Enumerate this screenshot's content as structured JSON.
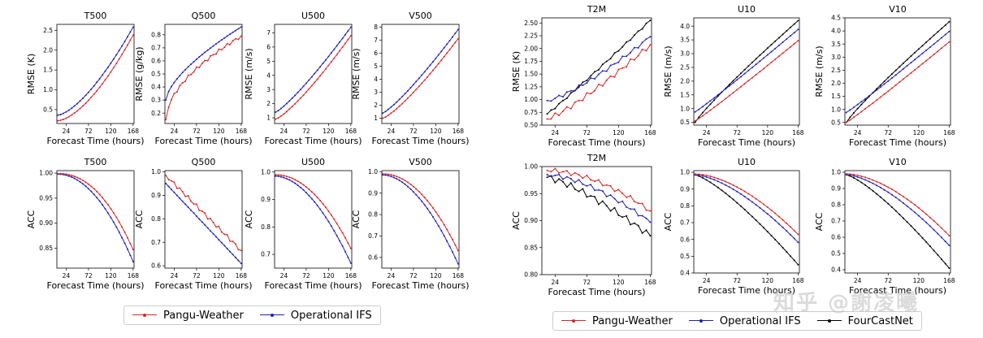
{
  "colors": {
    "pangu": "#d62728",
    "ifs": "#1f1fb4",
    "fcn": "#000000"
  },
  "legend_left": [
    {
      "series": "Pangu-Weather",
      "color": "#d62728"
    },
    {
      "series": "Operational IFS",
      "color": "#1f1fb4"
    }
  ],
  "legend_right": [
    {
      "series": "Pangu-Weather",
      "color": "#d62728"
    },
    {
      "series": "Operational IFS",
      "color": "#1f1fb4"
    },
    {
      "series": "FourCastNet",
      "color": "#000000"
    }
  ],
  "watermark": "知乎 @謝凌曦",
  "chart_data": [
    {
      "type": "line",
      "title": "T500",
      "xlabel": "Forecast Time (hours)",
      "ylabel": "RMSE (K)",
      "x": [
        6,
        168
      ],
      "xticks": [
        24,
        72,
        120,
        168
      ],
      "ylim": [
        0.15,
        2.65
      ],
      "yticks": [
        0.5,
        1.0,
        1.5,
        2.0,
        2.5
      ],
      "series": [
        {
          "name": "Pangu-Weather",
          "start": 0.22,
          "end": 2.38,
          "curve": 1.6
        },
        {
          "name": "Operational IFS",
          "start": 0.36,
          "end": 2.58,
          "curve": 1.5
        }
      ]
    },
    {
      "type": "line",
      "title": "Q500",
      "xlabel": "Forecast Time (hours)",
      "ylabel": "RMSE (g/kg)",
      "x": [
        6,
        168
      ],
      "xticks": [
        24,
        72,
        120,
        168
      ],
      "ylim": [
        0.12,
        0.88
      ],
      "yticks": [
        0.2,
        0.3,
        0.4,
        0.5,
        0.6,
        0.7,
        0.8
      ],
      "series": [
        {
          "name": "Pangu-Weather",
          "start": 0.15,
          "end": 0.79,
          "curve": 0.55,
          "noise": 0.012
        },
        {
          "name": "Operational IFS",
          "start": 0.3,
          "end": 0.86,
          "curve": 0.65
        }
      ]
    },
    {
      "type": "line",
      "title": "U500",
      "xlabel": "Forecast Time (hours)",
      "ylabel": "RMSE (m/s)",
      "x": [
        6,
        168
      ],
      "xticks": [
        24,
        72,
        120,
        168
      ],
      "ylim": [
        0.6,
        7.6
      ],
      "yticks": [
        1,
        2,
        3,
        4,
        5,
        6,
        7
      ],
      "series": [
        {
          "name": "Pangu-Weather",
          "start": 0.9,
          "end": 6.8,
          "curve": 1.25
        },
        {
          "name": "Operational IFS",
          "start": 1.4,
          "end": 7.4,
          "curve": 1.2
        }
      ]
    },
    {
      "type": "line",
      "title": "V500",
      "xlabel": "Forecast Time (hours)",
      "ylabel": "RMSE (m/s)",
      "x": [
        6,
        168
      ],
      "xticks": [
        24,
        72,
        120,
        168
      ],
      "ylim": [
        0.6,
        8.2
      ],
      "yticks": [
        1,
        2,
        3,
        4,
        5,
        6,
        7,
        8
      ],
      "series": [
        {
          "name": "Pangu-Weather",
          "start": 1.0,
          "end": 7.1,
          "curve": 1.25
        },
        {
          "name": "Operational IFS",
          "start": 1.4,
          "end": 7.8,
          "curve": 1.2
        }
      ]
    },
    {
      "type": "line",
      "title": "T2M",
      "xlabel": "Forecast Time (hours)",
      "ylabel": "RMSE (K)",
      "x": [
        12,
        168
      ],
      "xticks": [
        24,
        72,
        120,
        168
      ],
      "ylim": [
        0.5,
        2.6
      ],
      "yticks": [
        0.5,
        0.75,
        1.0,
        1.25,
        1.5,
        1.75,
        2.0,
        2.25,
        2.5
      ],
      "series": [
        {
          "name": "Pangu-Weather",
          "start": 0.62,
          "end": 2.07,
          "curve": 1.2,
          "noise": 0.05
        },
        {
          "name": "Operational IFS",
          "start": 0.98,
          "end": 2.23,
          "curve": 1.3,
          "noise": 0.035
        },
        {
          "name": "FourCastNet",
          "start": 0.72,
          "end": 2.55,
          "curve": 1.05,
          "noise": 0.02
        }
      ]
    },
    {
      "type": "line",
      "title": "U10",
      "xlabel": "Forecast Time (hours)",
      "ylabel": "RMSE (m/s)",
      "x": [
        6,
        168
      ],
      "xticks": [
        24,
        72,
        120,
        168
      ],
      "ylim": [
        0.4,
        4.3
      ],
      "yticks": [
        0.5,
        1.0,
        1.5,
        2.0,
        2.5,
        3.0,
        3.5,
        4.0
      ],
      "series": [
        {
          "name": "Pangu-Weather",
          "start": 0.55,
          "end": 3.47,
          "curve": 1.05
        },
        {
          "name": "Operational IFS",
          "start": 0.88,
          "end": 3.88,
          "curve": 1.05
        },
        {
          "name": "FourCastNet",
          "start": 0.5,
          "end": 4.2,
          "curve": 0.9
        }
      ]
    },
    {
      "type": "line",
      "title": "V10",
      "xlabel": "Forecast Time (hours)",
      "ylabel": "RMSE (m/s)",
      "x": [
        6,
        168
      ],
      "xticks": [
        24,
        72,
        120,
        168
      ],
      "ylim": [
        0.4,
        4.5
      ],
      "yticks": [
        0.5,
        1.0,
        1.5,
        2.0,
        2.5,
        3.0,
        3.5,
        4.0,
        4.5
      ],
      "series": [
        {
          "name": "Pangu-Weather",
          "start": 0.5,
          "end": 3.58,
          "curve": 1.05
        },
        {
          "name": "Operational IFS",
          "start": 0.88,
          "end": 3.98,
          "curve": 1.05
        },
        {
          "name": "FourCastNet",
          "start": 0.5,
          "end": 4.35,
          "curve": 0.9
        }
      ]
    },
    {
      "type": "line",
      "title": "T500",
      "xlabel": "Forecast Time (hours)",
      "ylabel": "ACC",
      "x": [
        6,
        168
      ],
      "xticks": [
        24,
        72,
        120,
        168
      ],
      "ylim": [
        0.81,
        1.005
      ],
      "yticks": [
        0.85,
        0.9,
        0.95,
        1.0
      ],
      "series": [
        {
          "name": "Pangu-Weather",
          "start": 0.999,
          "end": 0.847,
          "curve": 2.2
        },
        {
          "name": "Operational IFS",
          "start": 0.998,
          "end": 0.823,
          "curve": 2.0
        }
      ]
    },
    {
      "type": "line",
      "title": "Q500",
      "xlabel": "Forecast Time (hours)",
      "ylabel": "ACC",
      "x": [
        6,
        168
      ],
      "xticks": [
        24,
        72,
        120,
        168
      ],
      "ylim": [
        0.59,
        1.005
      ],
      "yticks": [
        0.6,
        0.7,
        0.8,
        0.9,
        1.0
      ],
      "series": [
        {
          "name": "Pangu-Weather",
          "start": 0.985,
          "end": 0.665,
          "curve": 1.0,
          "noise": 0.008
        },
        {
          "name": "Operational IFS",
          "start": 0.95,
          "end": 0.61,
          "curve": 1.0
        }
      ]
    },
    {
      "type": "line",
      "title": "U500",
      "xlabel": "Forecast Time (hours)",
      "ylabel": "ACC",
      "x": [
        6,
        168
      ],
      "xticks": [
        24,
        72,
        120,
        168
      ],
      "ylim": [
        0.65,
        1.005
      ],
      "yticks": [
        0.7,
        0.8,
        0.9,
        1.0
      ],
      "series": [
        {
          "name": "Pangu-Weather",
          "start": 0.99,
          "end": 0.722,
          "curve": 2.0
        },
        {
          "name": "Operational IFS",
          "start": 0.985,
          "end": 0.668,
          "curve": 1.85
        }
      ]
    },
    {
      "type": "line",
      "title": "V500",
      "xlabel": "Forecast Time (hours)",
      "ylabel": "ACC",
      "x": [
        6,
        168
      ],
      "xticks": [
        24,
        72,
        120,
        168
      ],
      "ylim": [
        0.55,
        1.005
      ],
      "yticks": [
        0.6,
        0.7,
        0.8,
        0.9,
        1.0
      ],
      "series": [
        {
          "name": "Pangu-Weather",
          "start": 0.99,
          "end": 0.632,
          "curve": 2.0
        },
        {
          "name": "Operational IFS",
          "start": 0.985,
          "end": 0.57,
          "curve": 1.85
        }
      ]
    },
    {
      "type": "line",
      "title": "T2M",
      "xlabel": "Forecast Time (hours)",
      "ylabel": "ACC",
      "x": [
        12,
        168
      ],
      "xticks": [
        24,
        72,
        120,
        168
      ],
      "ylim": [
        0.8,
        1.0
      ],
      "yticks": [
        0.8,
        0.85,
        0.9,
        0.95,
        1.0
      ],
      "series": [
        {
          "name": "Pangu-Weather",
          "start": 0.993,
          "end": 0.918,
          "curve": 1.8,
          "noise": 0.004
        },
        {
          "name": "Operational IFS",
          "start": 0.985,
          "end": 0.897,
          "curve": 1.6,
          "noise": 0.004
        },
        {
          "name": "FourCastNet",
          "start": 0.98,
          "end": 0.872,
          "curve": 1.3,
          "noise": 0.006
        }
      ]
    },
    {
      "type": "line",
      "title": "U10",
      "xlabel": "Forecast Time (hours)",
      "ylabel": "ACC",
      "x": [
        6,
        168
      ],
      "xticks": [
        24,
        72,
        120,
        168
      ],
      "ylim": [
        0.4,
        1.01
      ],
      "yticks": [
        0.4,
        0.5,
        0.6,
        0.7,
        0.8,
        0.9,
        1.0
      ],
      "series": [
        {
          "name": "Pangu-Weather",
          "start": 0.99,
          "end": 0.63,
          "curve": 1.7
        },
        {
          "name": "Operational IFS",
          "start": 0.985,
          "end": 0.583,
          "curve": 1.55
        },
        {
          "name": "FourCastNet",
          "start": 0.985,
          "end": 0.45,
          "curve": 1.3
        }
      ]
    },
    {
      "type": "line",
      "title": "V10",
      "xlabel": "Forecast Time (hours)",
      "ylabel": "ACC",
      "x": [
        6,
        168
      ],
      "xticks": [
        24,
        72,
        120,
        168
      ],
      "ylim": [
        0.38,
        1.01
      ],
      "yticks": [
        0.4,
        0.5,
        0.6,
        0.7,
        0.8,
        0.9,
        1.0
      ],
      "series": [
        {
          "name": "Pangu-Weather",
          "start": 0.99,
          "end": 0.61,
          "curve": 1.7
        },
        {
          "name": "Operational IFS",
          "start": 0.985,
          "end": 0.55,
          "curve": 1.55
        },
        {
          "name": "FourCastNet",
          "start": 0.985,
          "end": 0.41,
          "curve": 1.3
        }
      ]
    }
  ]
}
